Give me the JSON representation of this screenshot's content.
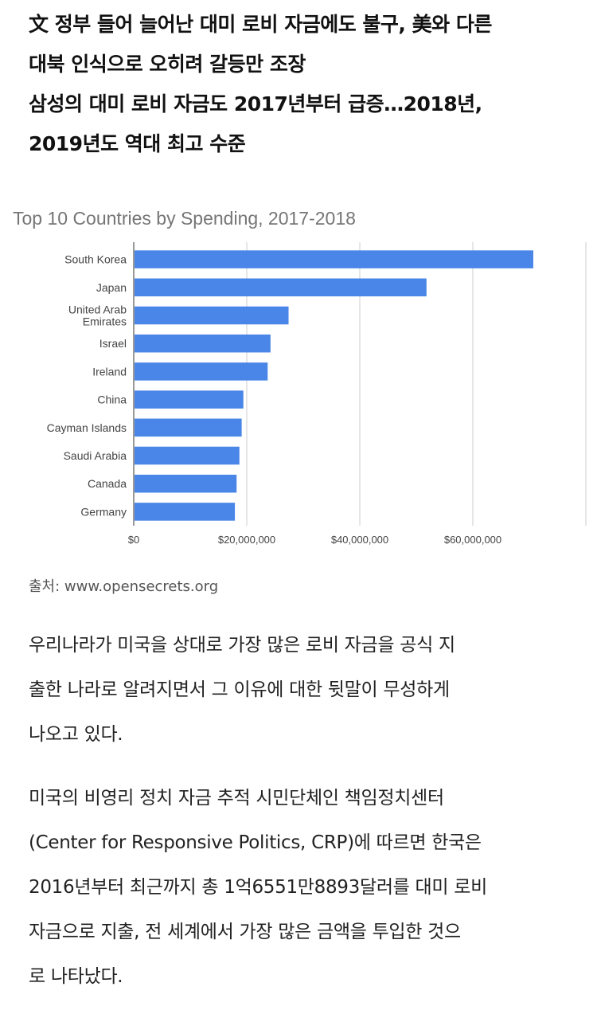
{
  "headline": {
    "lines": [
      "文 정부 들어 늘어난 대미 로비 자금에도 불구, 美와 다른",
      "대북 인식으로 오히려 갈등만 조장",
      "삼성의 대미 로비 자금도 2017년부터 급증…2018년,",
      "2019년도 역대 최고 수준"
    ]
  },
  "chart_data": {
    "type": "bar",
    "orientation": "horizontal",
    "title": "Top 10 Countries by Spending, 2017-2018",
    "categories": [
      "South Korea",
      "Japan",
      "United Arab Emirates",
      "Israel",
      "Ireland",
      "China",
      "Cayman Islands",
      "Saudi Arabia",
      "Canada",
      "Germany"
    ],
    "category_lines": [
      [
        "South Korea"
      ],
      [
        "Japan"
      ],
      [
        "United Arab",
        "Emirates"
      ],
      [
        "Israel"
      ],
      [
        "Ireland"
      ],
      [
        "China"
      ],
      [
        "Cayman Islands"
      ],
      [
        "Saudi Arabia"
      ],
      [
        "Canada"
      ],
      [
        "Germany"
      ]
    ],
    "values": [
      70700000,
      51800000,
      27400000,
      24200000,
      23700000,
      19400000,
      19100000,
      18700000,
      18200000,
      17900000
    ],
    "xlim": [
      0,
      80000000
    ],
    "xticks": [
      0,
      20000000,
      40000000,
      60000000
    ],
    "xtick_labels": [
      "$0",
      "$20,000,000",
      "$40,000,000",
      "$60,000,000"
    ],
    "xlabel": "",
    "ylabel": "",
    "grid": true,
    "bar_color": "#4a86e8"
  },
  "source": "출처: www.opensecrets.org",
  "body": {
    "paragraphs": [
      [
        "우리나라가 미국을 상대로 가장 많은 로비 자금을 공식 지",
        "출한 나라로 알려지면서 그 이유에 대한 뒷말이 무성하게",
        "나오고 있다."
      ],
      [
        "미국의 비영리 정치 자금 추적 시민단체인 책임정치센터",
        "(Center for Responsive Politics, CRP)에 따르면 한국은",
        "2016년부터 최근까지 총 1억6551만8893달러를 대미 로비",
        "자금으로 지출, 전 세계에서 가장 많은 금액을 투입한 것으",
        "로 나타났다."
      ]
    ]
  }
}
